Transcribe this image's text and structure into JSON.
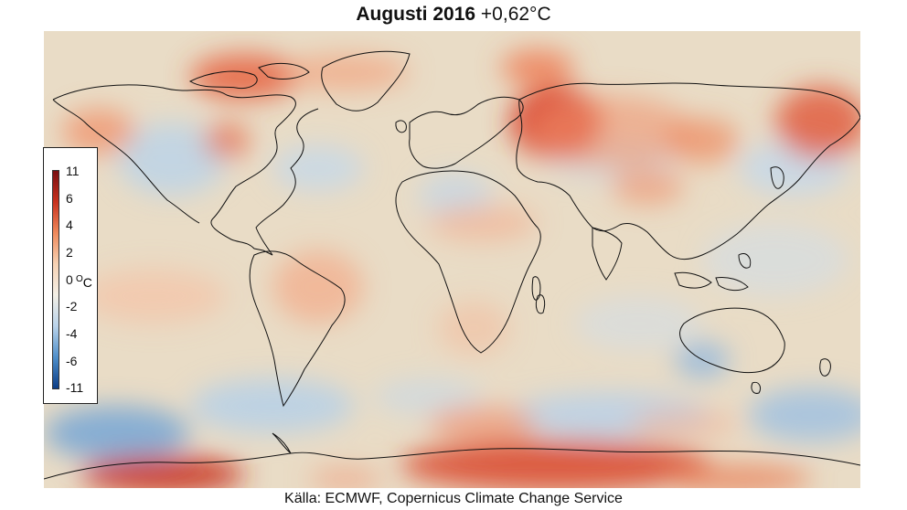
{
  "title": {
    "bold": "Augusti 2016",
    "anomaly": "+0,62°C"
  },
  "source": "Källa: ECMWF, Copernicus Climate Change Service",
  "legend": {
    "labels": [
      "11",
      "6",
      "4",
      "2",
      "0",
      "-2",
      "-4",
      "-6",
      "-11"
    ],
    "unit_prefix": "O",
    "unit_suffix": "C",
    "colors": {
      "max": "#7a0f12",
      "hot": "#c8321f",
      "warm": "#ef8a5c",
      "mild": "#f6d2b4",
      "neutral": "#f3efe6",
      "cool": "#b9d3ea",
      "cold": "#4f8fca",
      "min": "#0c3d86"
    }
  },
  "map": {
    "background": "#e9dcc6",
    "coastline_color": "#111111"
  }
}
